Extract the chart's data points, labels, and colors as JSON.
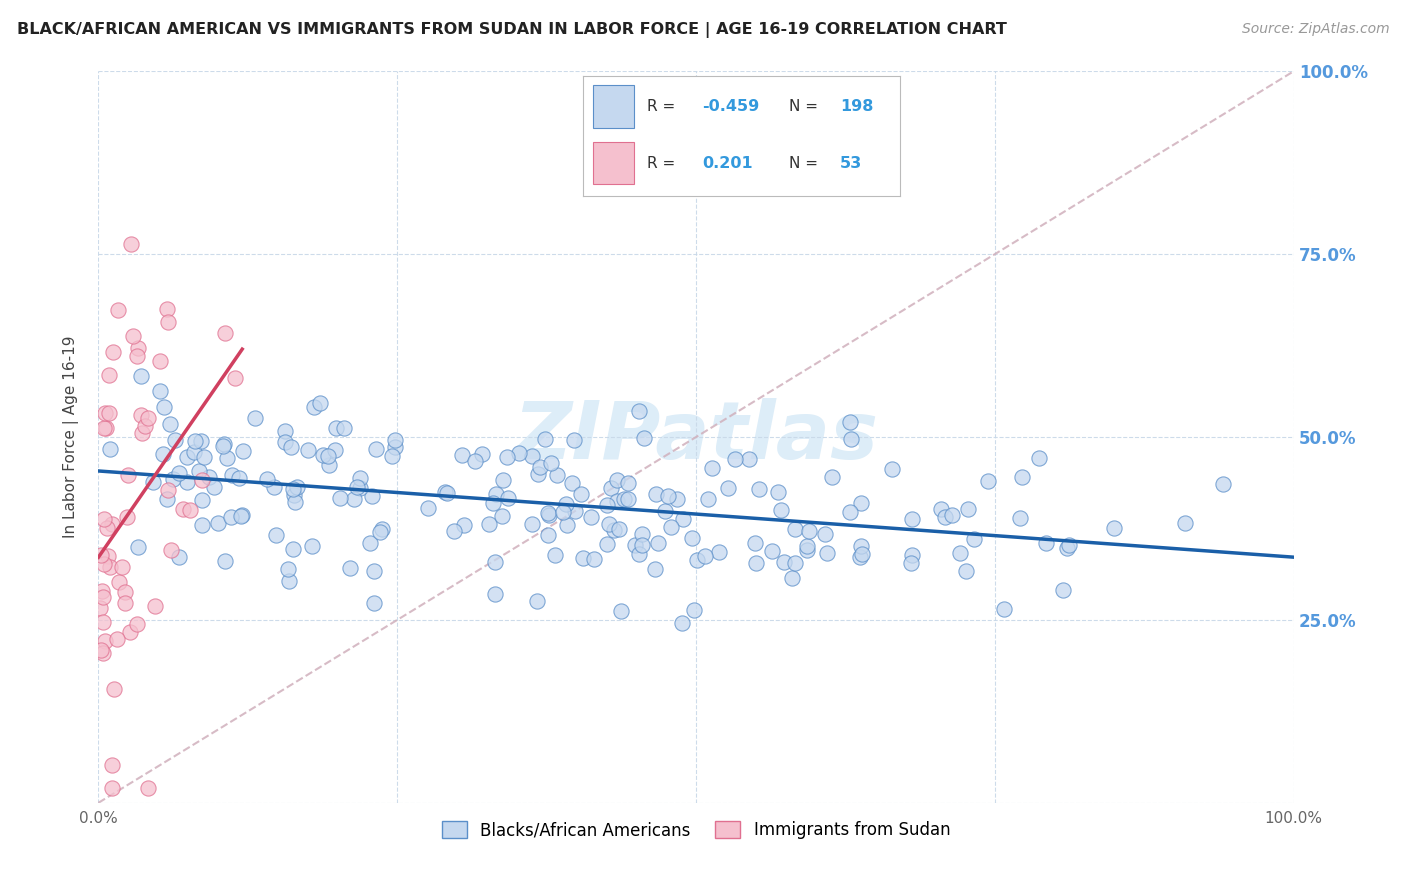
{
  "title": "BLACK/AFRICAN AMERICAN VS IMMIGRANTS FROM SUDAN IN LABOR FORCE | AGE 16-19 CORRELATION CHART",
  "source": "Source: ZipAtlas.com",
  "ylabel_label": "In Labor Force | Age 16-19",
  "blue_R": -0.459,
  "blue_N": 198,
  "pink_R": 0.201,
  "pink_N": 53,
  "blue_fill": "#c5d8ef",
  "pink_fill": "#f5c0ce",
  "blue_edge": "#5b8fc9",
  "pink_edge": "#e07090",
  "blue_line_color": "#1a5fa8",
  "pink_line_color": "#d04060",
  "diagonal_color": "#d0b0bc",
  "watermark_color": "#ddedf8",
  "legend_blue_label": "Blacks/African Americans",
  "legend_pink_label": "Immigrants from Sudan",
  "xlim": [
    0.0,
    1.0
  ],
  "ylim": [
    0.0,
    1.0
  ],
  "blue_seed": 12,
  "pink_seed": 99,
  "right_tick_color": "#5599dd",
  "grid_color": "#c8d8e8"
}
